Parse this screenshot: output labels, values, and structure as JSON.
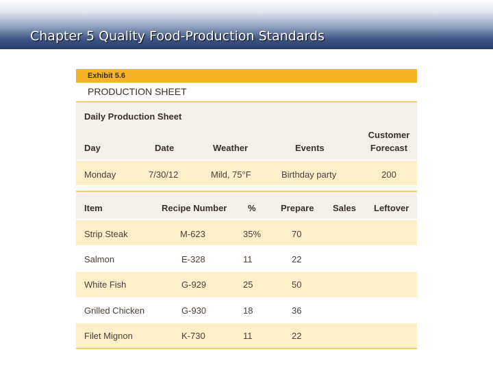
{
  "slide": {
    "title": "Chapter 5 Quality Food-Production Standards"
  },
  "exhibit": {
    "label": "Exhibit 5.6",
    "title": "PRODUCTION SHEET",
    "sheet_label": "Daily Production Sheet",
    "info_headers": {
      "day": "Day",
      "date": "Date",
      "weather": "Weather",
      "events": "Events",
      "forecast_line1": "Customer",
      "forecast_line2": "Forecast"
    },
    "info_row": {
      "day": "Monday",
      "date": "7/30/12",
      "weather": "Mild, 75°F",
      "events": "Birthday party",
      "forecast": "200"
    },
    "item_headers": {
      "item": "Item",
      "recipe": "Recipe Number",
      "percent": "%",
      "prepare": "Prepare",
      "sales": "Sales",
      "leftover": "Leftover"
    },
    "items": [
      {
        "item": "Strip Steak",
        "recipe": "M-623",
        "percent": "35%",
        "prepare": "70"
      },
      {
        "item": "Salmon",
        "recipe": "E-328",
        "percent": "11",
        "prepare": "22"
      },
      {
        "item": "White Fish",
        "recipe": "G-929",
        "percent": "25",
        "prepare": "50"
      },
      {
        "item": "Grilled Chicken",
        "recipe": "G-930",
        "percent": "18",
        "prepare": "36"
      },
      {
        "item": "Filet Mignon",
        "recipe": "K-730",
        "percent": "11",
        "prepare": "22"
      }
    ]
  }
}
